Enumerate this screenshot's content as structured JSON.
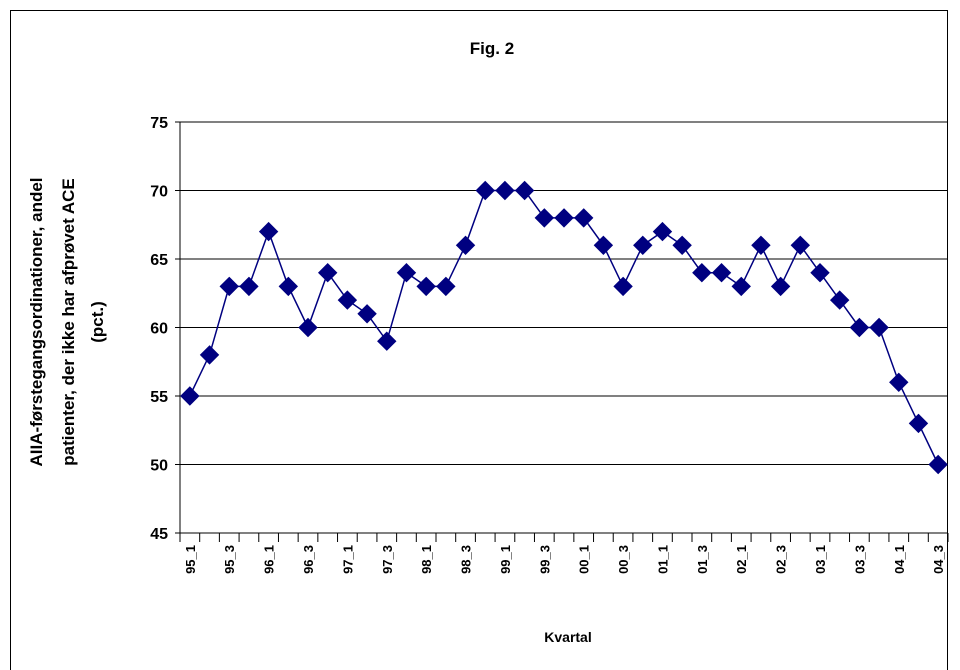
{
  "chart_data": {
    "type": "line",
    "title": "Fig. 2",
    "xlabel": "Kvartal",
    "ylabel_lines": [
      "AIIA-førstegangsordinationer, andel",
      "patienter, der ikke har afprøvet ACE",
      "(pct.)"
    ],
    "ylim": [
      45,
      75
    ],
    "yticks": [
      45,
      50,
      55,
      60,
      65,
      70,
      75
    ],
    "grid": "horizontal",
    "categories": [
      "95_1",
      "95_2",
      "95_3",
      "95_4",
      "96_1",
      "96_2",
      "96_3",
      "96_4",
      "97_1",
      "97_2",
      "97_3",
      "97_4",
      "98_1",
      "98_2",
      "98_3",
      "98_4",
      "99_1",
      "99_2",
      "99_3",
      "99_4",
      "00_1",
      "00_2",
      "00_3",
      "00_4",
      "01_1",
      "01_2",
      "01_3",
      "01_4",
      "02_1",
      "02_2",
      "02_3",
      "02_4",
      "03_1",
      "03_2",
      "03_3",
      "03_4",
      "04_1",
      "04_2",
      "04_3"
    ],
    "tick_labels": [
      "95_1",
      "95_3",
      "96_1",
      "96_3",
      "97_1",
      "97_3",
      "98_1",
      "98_3",
      "99_1",
      "99_3",
      "00_1",
      "00_3",
      "01_1",
      "01_3",
      "02_1",
      "02_3",
      "03_1",
      "03_3",
      "04_1",
      "04_3"
    ],
    "series": [
      {
        "color": "#000080",
        "values": [
          55,
          58,
          63,
          63,
          67,
          63,
          60,
          64,
          62,
          61,
          59,
          64,
          63,
          63,
          66,
          70,
          70,
          70,
          68,
          68,
          68,
          66,
          63,
          66,
          67,
          66,
          64,
          64,
          63,
          66,
          63,
          66,
          64,
          62,
          60,
          60,
          56,
          53,
          50
        ]
      }
    ]
  }
}
